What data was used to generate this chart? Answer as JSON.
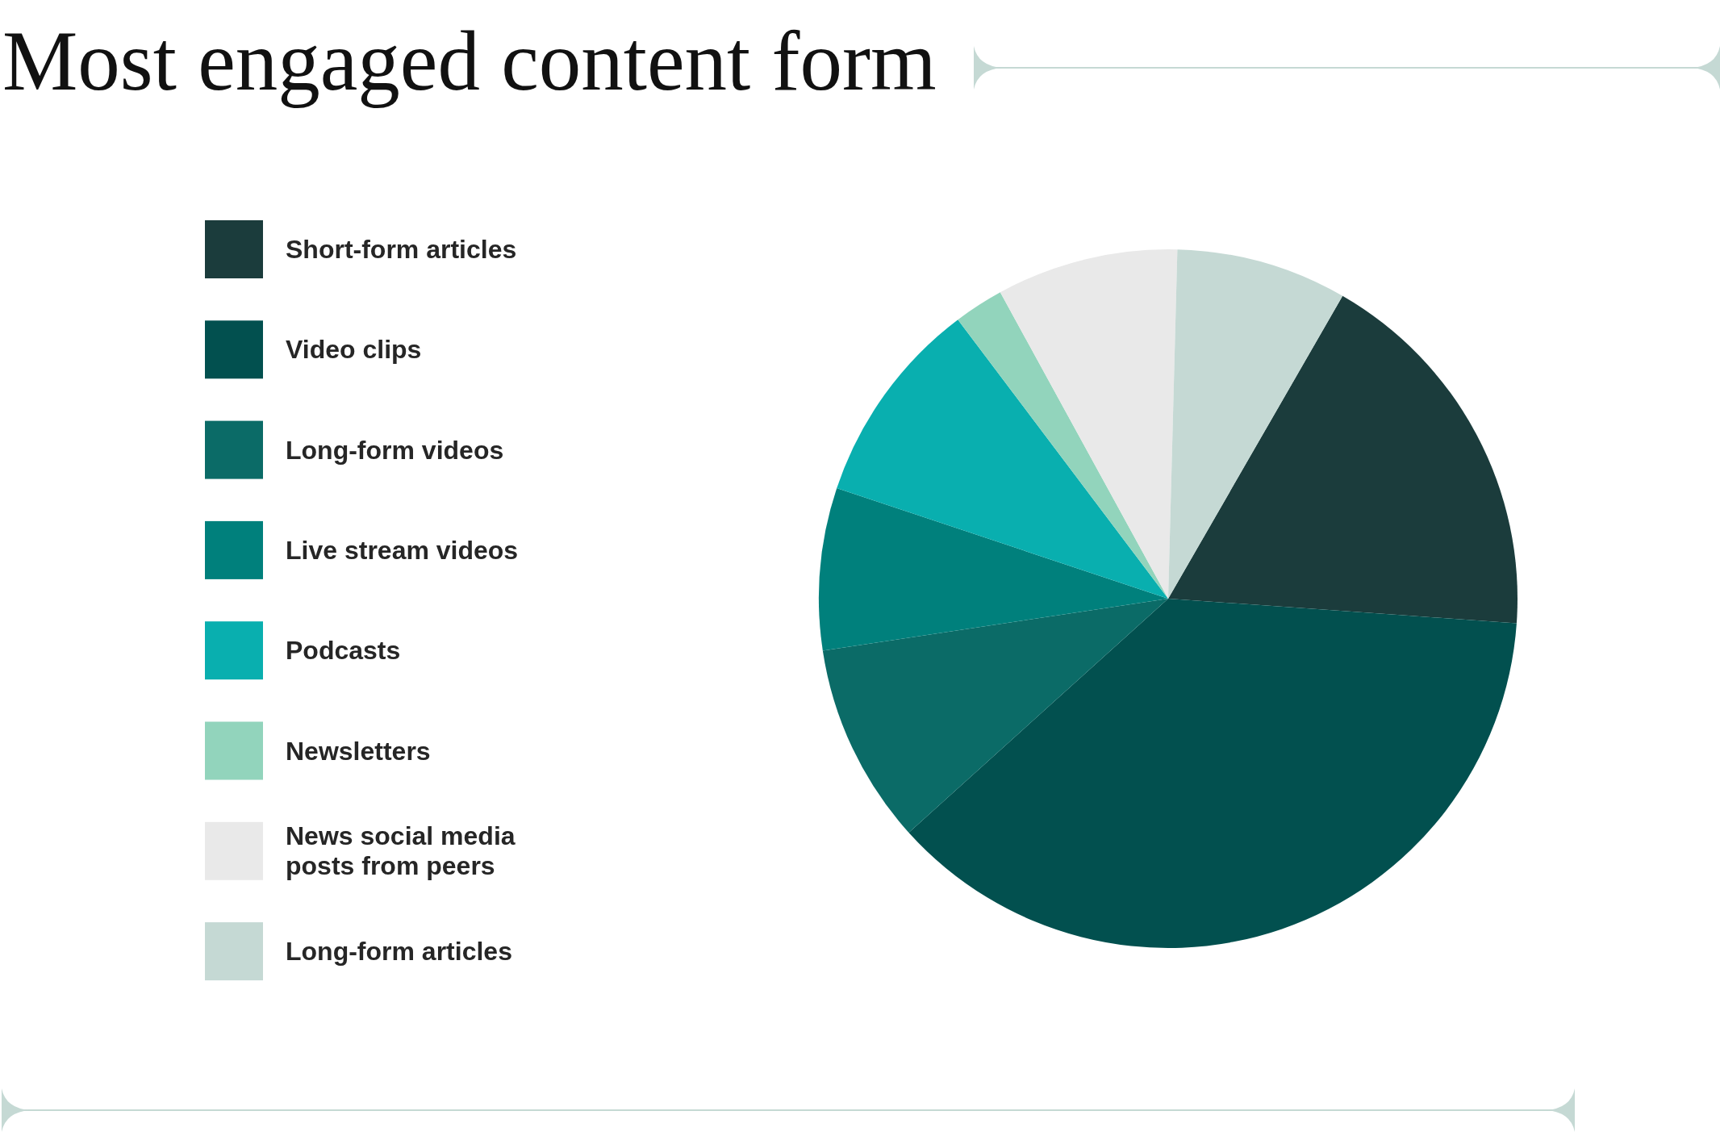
{
  "chart_data": {
    "type": "pie",
    "title": "Most engaged content form",
    "categories": [
      "Short-form articles",
      "Video clips",
      "Long-form videos",
      "Live stream videos",
      "Podcasts",
      "Newsletters",
      "News social media posts from peers",
      "Long-form articles"
    ],
    "values": [
      17.8,
      37.2,
      9.3,
      7.5,
      9.6,
      2.3,
      8.4,
      7.9
    ],
    "colors": [
      "#1b3c3c",
      "#02504f",
      "#0b6b67",
      "#00807c",
      "#09afaf",
      "#92d4bc",
      "#e9e9e9",
      "#c5d9d4"
    ],
    "legend": "left"
  }
}
